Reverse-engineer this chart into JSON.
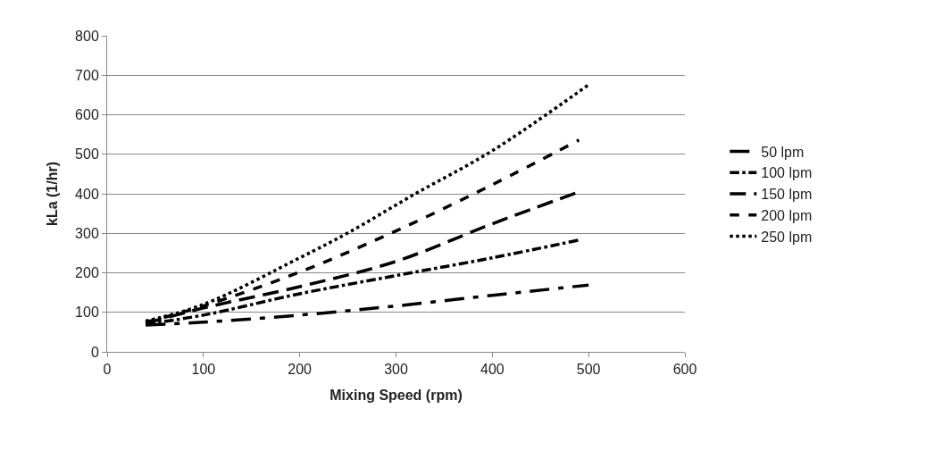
{
  "chart_data": {
    "type": "line",
    "xlabel": "Mixing Speed (rpm)",
    "ylabel": "kLa (1/hr)",
    "xlim": [
      0,
      600
    ],
    "xticks": [
      0,
      100,
      200,
      300,
      400,
      500,
      600
    ],
    "ylim": [
      0,
      800
    ],
    "yticks": [
      0,
      100,
      200,
      300,
      400,
      500,
      600,
      700,
      800
    ],
    "grid": "y",
    "legend": "right",
    "marker": "none",
    "series": [
      {
        "name": "50 lpm",
        "color": "#000000",
        "line_style": "longdash",
        "x": [
          40,
          100,
          200,
          300,
          400,
          500
        ],
        "values": [
          68,
          75,
          93,
          116,
          143,
          169
        ]
      },
      {
        "name": "100 lpm",
        "color": "#000000",
        "line_style": "dashdot",
        "x": [
          40,
          100,
          200,
          300,
          400,
          490
        ],
        "values": [
          70,
          93,
          147,
          193,
          238,
          283
        ]
      },
      {
        "name": "150 lpm",
        "color": "#000000",
        "line_style": "dashed",
        "x": [
          40,
          100,
          200,
          300,
          400,
          490
        ],
        "values": [
          72,
          111,
          165,
          229,
          324,
          405
        ]
      },
      {
        "name": "200 lpm",
        "color": "#000000",
        "line_style": "dash",
        "x": [
          40,
          100,
          200,
          300,
          400,
          490
        ],
        "values": [
          75,
          116,
          202,
          306,
          423,
          536
        ]
      },
      {
        "name": "250 lpm",
        "color": "#000000",
        "line_style": "dotted",
        "x": [
          40,
          100,
          200,
          250,
          320,
          400,
          500
        ],
        "values": [
          78,
          120,
          238,
          301,
          400,
          509,
          676
        ]
      }
    ]
  }
}
